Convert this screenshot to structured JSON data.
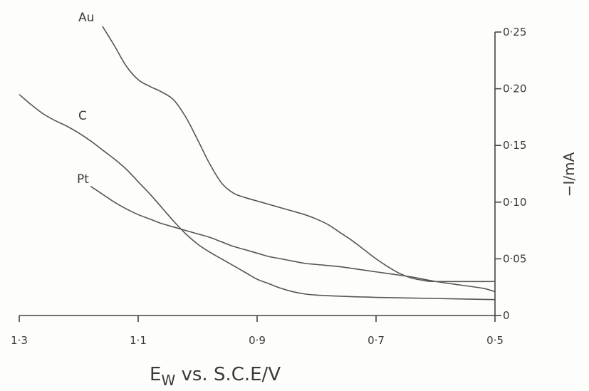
{
  "chart_data": {
    "type": "line",
    "x_axis": {
      "tick_labels": [
        "1·3",
        "1·1",
        "0·9",
        "0·7",
        "0·5"
      ],
      "tick_values": [
        1.3,
        1.1,
        0.9,
        0.7,
        0.5
      ],
      "range": [
        1.3,
        0.5
      ],
      "reversed": true,
      "label_main": "E",
      "label_sub": "W",
      "label_rest": " vs. S.C.E/V"
    },
    "y_axis": {
      "tick_labels": [
        "0",
        "0·05",
        "0·10",
        "0·15",
        "0·20",
        "0·25"
      ],
      "tick_values": [
        0,
        0.05,
        0.1,
        0.15,
        0.2,
        0.25
      ],
      "range": [
        0,
        0.25
      ],
      "position": "right",
      "label": "−I/mA"
    },
    "grid": false,
    "series": [
      {
        "name": "Au",
        "points": [
          [
            1.16,
            0.255
          ],
          [
            1.14,
            0.238
          ],
          [
            1.12,
            0.22
          ],
          [
            1.1,
            0.208
          ],
          [
            1.08,
            0.202
          ],
          [
            1.06,
            0.197
          ],
          [
            1.04,
            0.19
          ],
          [
            1.02,
            0.175
          ],
          [
            1.0,
            0.155
          ],
          [
            0.98,
            0.134
          ],
          [
            0.96,
            0.117
          ],
          [
            0.94,
            0.108
          ],
          [
            0.92,
            0.104
          ],
          [
            0.9,
            0.101
          ],
          [
            0.88,
            0.098
          ],
          [
            0.86,
            0.095
          ],
          [
            0.84,
            0.092
          ],
          [
            0.82,
            0.089
          ],
          [
            0.8,
            0.085
          ],
          [
            0.78,
            0.08
          ],
          [
            0.76,
            0.073
          ],
          [
            0.74,
            0.066
          ],
          [
            0.72,
            0.058
          ],
          [
            0.7,
            0.05
          ],
          [
            0.68,
            0.043
          ],
          [
            0.66,
            0.037
          ],
          [
            0.64,
            0.033
          ],
          [
            0.62,
            0.031
          ],
          [
            0.6,
            0.03
          ],
          [
            0.5,
            0.03
          ]
        ]
      },
      {
        "name": "C",
        "points": [
          [
            1.3,
            0.195
          ],
          [
            1.28,
            0.186
          ],
          [
            1.26,
            0.178
          ],
          [
            1.24,
            0.172
          ],
          [
            1.22,
            0.167
          ],
          [
            1.2,
            0.161
          ],
          [
            1.18,
            0.154
          ],
          [
            1.16,
            0.146
          ],
          [
            1.14,
            0.138
          ],
          [
            1.12,
            0.129
          ],
          [
            1.1,
            0.118
          ],
          [
            1.08,
            0.107
          ],
          [
            1.06,
            0.095
          ],
          [
            1.04,
            0.083
          ],
          [
            1.02,
            0.072
          ],
          [
            1.0,
            0.063
          ],
          [
            0.98,
            0.056
          ],
          [
            0.96,
            0.05
          ],
          [
            0.94,
            0.044
          ],
          [
            0.92,
            0.038
          ],
          [
            0.9,
            0.032
          ],
          [
            0.88,
            0.028
          ],
          [
            0.86,
            0.024
          ],
          [
            0.84,
            0.021
          ],
          [
            0.82,
            0.019
          ],
          [
            0.8,
            0.018
          ],
          [
            0.76,
            0.017
          ],
          [
            0.7,
            0.016
          ],
          [
            0.6,
            0.015
          ],
          [
            0.5,
            0.014
          ]
        ]
      },
      {
        "name": "Pt",
        "points": [
          [
            1.18,
            0.114
          ],
          [
            1.16,
            0.107
          ],
          [
            1.14,
            0.1
          ],
          [
            1.12,
            0.094
          ],
          [
            1.1,
            0.089
          ],
          [
            1.08,
            0.085
          ],
          [
            1.06,
            0.081
          ],
          [
            1.04,
            0.078
          ],
          [
            1.02,
            0.075
          ],
          [
            1.0,
            0.072
          ],
          [
            0.98,
            0.069
          ],
          [
            0.96,
            0.065
          ],
          [
            0.94,
            0.061
          ],
          [
            0.92,
            0.058
          ],
          [
            0.9,
            0.055
          ],
          [
            0.88,
            0.052
          ],
          [
            0.86,
            0.05
          ],
          [
            0.84,
            0.048
          ],
          [
            0.82,
            0.046
          ],
          [
            0.8,
            0.045
          ],
          [
            0.76,
            0.043
          ],
          [
            0.72,
            0.04
          ],
          [
            0.68,
            0.037
          ],
          [
            0.64,
            0.034
          ],
          [
            0.6,
            0.03
          ],
          [
            0.56,
            0.027
          ],
          [
            0.52,
            0.024
          ],
          [
            0.5,
            0.021
          ]
        ]
      }
    ]
  }
}
